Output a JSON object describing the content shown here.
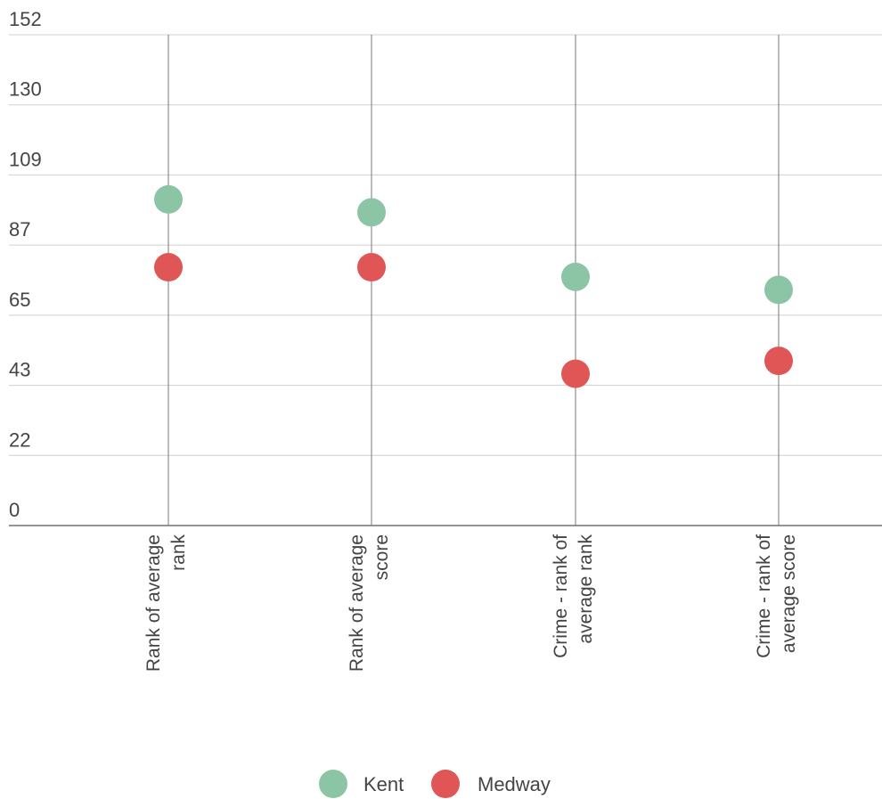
{
  "chart_data": {
    "type": "scatter",
    "categories": [
      [
        "Rank of average",
        "rank"
      ],
      [
        "Rank of average",
        "score"
      ],
      [
        "Crime - rank of",
        "average rank"
      ],
      [
        "Crime - rank of",
        "average score"
      ]
    ],
    "series": [
      {
        "name": "Kent",
        "color": "#8cc5a6",
        "values": [
          101,
          97,
          77,
          73
        ]
      },
      {
        "name": "Medway",
        "color": "#e05555",
        "values": [
          80,
          80,
          47,
          51
        ]
      }
    ],
    "y_ticks": [
      "152",
      "130",
      "109",
      "87",
      "65",
      "43",
      "22",
      "0"
    ],
    "ylim": [
      0,
      152
    ],
    "grid": true,
    "legend_position": "bottom-center"
  }
}
